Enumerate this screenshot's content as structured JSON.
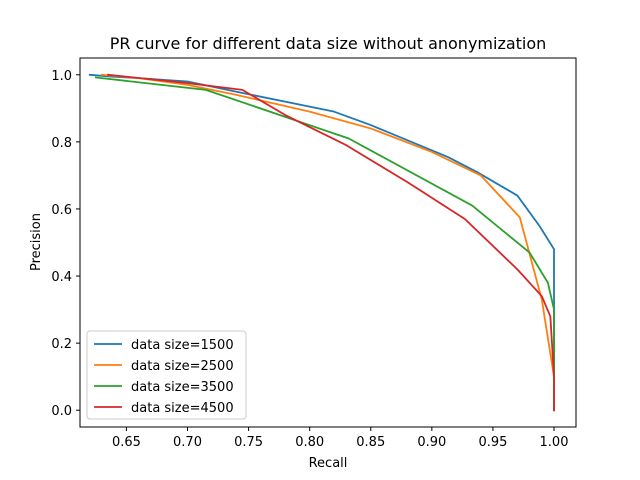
{
  "chart_data": {
    "type": "line",
    "title": "PR curve for different data size without anonymization",
    "xlabel": "Recall",
    "ylabel": "Precision",
    "xlim": [
      0.612,
      1.018
    ],
    "ylim": [
      -0.05,
      1.05
    ],
    "xticks": [
      0.65,
      0.7,
      0.75,
      0.8,
      0.85,
      0.9,
      0.95,
      1.0
    ],
    "xtick_labels": [
      "0.65",
      "0.70",
      "0.75",
      "0.80",
      "0.85",
      "0.90",
      "0.95",
      "1.00"
    ],
    "yticks": [
      0.0,
      0.2,
      0.4,
      0.6,
      0.8,
      1.0
    ],
    "ytick_labels": [
      "0.0",
      "0.2",
      "0.4",
      "0.6",
      "0.8",
      "1.0"
    ],
    "grid": false,
    "legend_position": "lower-left",
    "series": [
      {
        "name": "data size=1500",
        "color": "#1f77b4",
        "x": [
          0.62,
          0.636,
          0.66,
          0.7,
          0.746,
          0.82,
          0.85,
          0.913,
          0.937,
          0.97,
          0.988,
          1.0,
          1.0,
          1.0
        ],
        "y": [
          1.0,
          0.995,
          0.99,
          0.98,
          0.945,
          0.89,
          0.85,
          0.755,
          0.71,
          0.64,
          0.55,
          0.48,
          0.1,
          0.0
        ]
      },
      {
        "name": "data size=2500",
        "color": "#ff7f0e",
        "x": [
          0.63,
          0.66,
          0.7,
          0.74,
          0.8,
          0.85,
          0.9,
          0.94,
          0.972,
          0.99,
          1.0,
          1.0
        ],
        "y": [
          1.0,
          0.99,
          0.97,
          0.94,
          0.89,
          0.84,
          0.77,
          0.7,
          0.575,
          0.33,
          0.1,
          0.0
        ]
      },
      {
        "name": "data size=3500",
        "color": "#2ca02c",
        "x": [
          0.625,
          0.715,
          0.832,
          0.933,
          0.98,
          0.995,
          1.0,
          1.0
        ],
        "y": [
          0.992,
          0.955,
          0.81,
          0.61,
          0.47,
          0.38,
          0.3,
          0.0
        ]
      },
      {
        "name": "data size=4500",
        "color": "#d62728",
        "x": [
          0.635,
          0.7,
          0.745,
          0.78,
          0.83,
          0.88,
          0.927,
          0.97,
          0.99,
          0.997,
          1.0,
          1.0
        ],
        "y": [
          1.0,
          0.975,
          0.955,
          0.88,
          0.79,
          0.68,
          0.57,
          0.42,
          0.34,
          0.28,
          0.1,
          0.0
        ]
      }
    ]
  }
}
